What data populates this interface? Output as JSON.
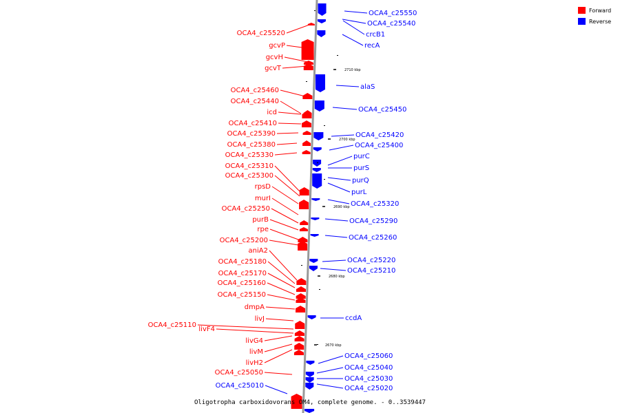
{
  "caption": "Oligotropha carboxidovorans OM4, complete genome. - 0..3539447",
  "legend": [
    {
      "label": "Forward",
      "color": "#ff0000"
    },
    {
      "label": "Reverse",
      "color": "#0000ff"
    }
  ],
  "colors": {
    "forward": "#ff0000",
    "reverse": "#0000ff",
    "backbone": "#999999"
  },
  "scale_marks": [
    {
      "label": "2710 kbp"
    },
    {
      "label": "2700 kbp"
    },
    {
      "label": "2690 kbp"
    },
    {
      "label": "2680 kbp"
    },
    {
      "label": "2670 kbp"
    }
  ],
  "forward_labels": [
    "OCA4_c25520",
    "gcvP",
    "gcvH",
    "gcvT",
    "OCA4_c25460",
    "OCA4_c25440",
    "icd",
    "OCA4_c25410",
    "OCA4_c25390",
    "OCA4_c25380",
    "OCA4_c25330",
    "OCA4_c25310",
    "OCA4_c25300",
    "rpsD",
    "murI",
    "OCA4_c25250",
    "purB",
    "rpe",
    "OCA4_c25200",
    "aniA2",
    "OCA4_c25180",
    "OCA4_c25170",
    "OCA4_c25160",
    "OCA4_c25150",
    "dmpA",
    "livJ",
    "OCA4_c25110",
    "livF4",
    "livG4",
    "livM",
    "livH2",
    "OCA4_c25050"
  ],
  "reverse_labels": [
    "OCA4_c25550",
    "OCA4_c25540",
    "crcB1",
    "recA",
    "alaS",
    "OCA4_c25450",
    "OCA4_c25420",
    "OCA4_c25400",
    "purC",
    "purS",
    "purQ",
    "purL",
    "OCA4_c25320",
    "OCA4_c25290",
    "OCA4_c25260",
    "OCA4_c25220",
    "OCA4_c25210",
    "ccdA",
    "OCA4_c25060",
    "OCA4_c25040",
    "OCA4_c25030",
    "OCA4_c25020",
    "OCA4_c25010"
  ]
}
